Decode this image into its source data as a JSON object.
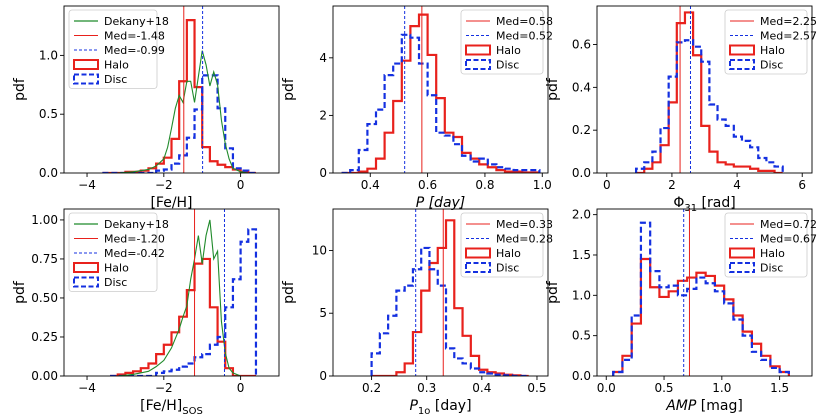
{
  "chart_data": [
    {
      "type": "histogram",
      "xlabel": "[Fe/H]",
      "xlabel_sub": "",
      "ylabel": "pdf",
      "xlim": [
        -4.6,
        1.0
      ],
      "ylim": [
        0,
        1.42
      ],
      "xticks": [
        -4,
        -2,
        0
      ],
      "xtick_labels": [
        "−4",
        "−2",
        "0"
      ],
      "yticks": [
        0,
        0.5,
        1.0
      ],
      "ytick_labels": [
        "0.0",
        "0.5",
        "1.0"
      ],
      "legend_loc": "top-left",
      "legend": [
        {
          "kind": "green",
          "label": "Dekany+18"
        },
        {
          "kind": "red-line",
          "label": "Med=-1.48"
        },
        {
          "kind": "blue-dash",
          "label": "Med=-0.99"
        },
        {
          "kind": "red-box",
          "label": "Halo"
        },
        {
          "kind": "blue-box",
          "label": "Disc"
        }
      ],
      "medians": {
        "halo": -1.48,
        "disc": -0.99
      },
      "bin_edges": [
        -3.6,
        -3.4,
        -3.2,
        -3.0,
        -2.8,
        -2.6,
        -2.4,
        -2.2,
        -2.0,
        -1.8,
        -1.6,
        -1.4,
        -1.2,
        -1.0,
        -0.8,
        -0.6,
        -0.4,
        -0.2,
        0.0,
        0.2,
        0.4
      ],
      "series": [
        {
          "name": "Halo",
          "values": [
            0.0,
            0.0,
            0.0,
            0.01,
            0.01,
            0.02,
            0.04,
            0.08,
            0.13,
            0.29,
            0.78,
            1.3,
            0.73,
            0.22,
            0.1,
            0.07,
            0.05,
            0.03,
            0.01,
            0.0
          ]
        },
        {
          "name": "Disc",
          "values": [
            0.0,
            0.0,
            0.0,
            0.0,
            0.0,
            0.0,
            0.0,
            0.02,
            0.03,
            0.08,
            0.15,
            0.3,
            0.54,
            0.83,
            0.83,
            0.55,
            0.21,
            0.04,
            0.02,
            0.0
          ]
        }
      ],
      "curve_name": "Dekany+18",
      "curve": {
        "x": [
          -3.2,
          -2.8,
          -2.4,
          -2.2,
          -2.0,
          -1.9,
          -1.8,
          -1.7,
          -1.6,
          -1.5,
          -1.4,
          -1.3,
          -1.2,
          -1.1,
          -1.0,
          -0.9,
          -0.8,
          -0.7,
          -0.6,
          -0.5,
          -0.4,
          -0.3,
          -0.2,
          0.0,
          0.2
        ],
        "y": [
          0.0,
          0.01,
          0.03,
          0.06,
          0.12,
          0.22,
          0.38,
          0.55,
          0.66,
          0.6,
          0.78,
          0.78,
          0.6,
          0.82,
          1.04,
          0.92,
          0.74,
          0.86,
          0.75,
          0.45,
          0.25,
          0.12,
          0.04,
          0.01,
          0.0
        ]
      }
    },
    {
      "type": "histogram",
      "xlabel": "P [day]",
      "xlabel_sub": "",
      "ylabel": "pdf",
      "xlim": [
        0.27,
        1.02
      ],
      "ylim": [
        0,
        5.8
      ],
      "xticks": [
        0.4,
        0.6,
        0.8,
        1.0
      ],
      "xtick_labels": [
        "0.4",
        "0.6",
        "0.8",
        "1.0"
      ],
      "yticks": [
        0,
        2,
        4
      ],
      "ytick_labels": [
        "0",
        "2",
        "4"
      ],
      "legend_loc": "top-right",
      "legend": [
        {
          "kind": "red-line",
          "label": "Med=0.58"
        },
        {
          "kind": "blue-dash",
          "label": "Med=0.52"
        },
        {
          "kind": "red-box",
          "label": "Halo"
        },
        {
          "kind": "blue-box",
          "label": "Disc"
        }
      ],
      "medians": {
        "halo": 0.58,
        "disc": 0.52
      },
      "bin_edges": [
        0.3,
        0.33,
        0.36,
        0.39,
        0.42,
        0.45,
        0.48,
        0.51,
        0.54,
        0.57,
        0.6,
        0.63,
        0.66,
        0.69,
        0.72,
        0.75,
        0.78,
        0.81,
        0.84,
        0.87,
        0.9,
        0.93,
        0.96,
        0.99
      ],
      "series": [
        {
          "name": "Halo",
          "values": [
            0.0,
            0.0,
            0.05,
            0.15,
            0.5,
            1.4,
            2.5,
            3.9,
            5.1,
            5.5,
            4.1,
            2.6,
            1.4,
            1.25,
            0.7,
            0.5,
            0.3,
            0.2,
            0.1,
            0.05,
            0.05,
            0.02,
            0.02
          ]
        },
        {
          "name": "Disc",
          "values": [
            0.0,
            0.1,
            0.8,
            1.7,
            2.2,
            3.4,
            3.8,
            4.8,
            4.7,
            3.8,
            2.7,
            1.4,
            1.3,
            1.0,
            0.6,
            0.4,
            0.5,
            0.3,
            0.2,
            0.15,
            0.1,
            0.1,
            0.1
          ]
        }
      ]
    },
    {
      "type": "histogram",
      "xlabel": "Φ",
      "xlabel_sub": "31",
      "xlabel_suffix": " [rad]",
      "ylabel": "pdf",
      "xlim": [
        -0.3,
        6.3
      ],
      "ylim": [
        0,
        0.78
      ],
      "xticks": [
        0,
        2,
        4,
        6
      ],
      "xtick_labels": [
        "0",
        "2",
        "4",
        "6"
      ],
      "yticks": [
        0,
        0.2,
        0.4,
        0.6
      ],
      "ytick_labels": [
        "0.0",
        "0.2",
        "0.4",
        "0.6"
      ],
      "legend_loc": "top-right",
      "legend": [
        {
          "kind": "red-line",
          "label": "Med=2.25"
        },
        {
          "kind": "blue-dash",
          "label": "Med=2.57"
        },
        {
          "kind": "red-box",
          "label": "Halo"
        },
        {
          "kind": "blue-box",
          "label": "Disc"
        }
      ],
      "medians": {
        "halo": 2.25,
        "disc": 2.57
      },
      "bin_edges": [
        0.9,
        1.15,
        1.4,
        1.65,
        1.9,
        2.15,
        2.4,
        2.65,
        2.9,
        3.15,
        3.4,
        3.65,
        3.9,
        4.15,
        4.4,
        4.65,
        4.9,
        5.15,
        5.4
      ],
      "series": [
        {
          "name": "Halo",
          "values": [
            0.0,
            0.02,
            0.05,
            0.13,
            0.33,
            0.7,
            0.75,
            0.55,
            0.22,
            0.1,
            0.05,
            0.04,
            0.03,
            0.03,
            0.02,
            0.01,
            0.01,
            0.0
          ]
        },
        {
          "name": "Disc",
          "values": [
            0.02,
            0.05,
            0.1,
            0.21,
            0.45,
            0.61,
            0.62,
            0.59,
            0.52,
            0.32,
            0.25,
            0.22,
            0.17,
            0.15,
            0.12,
            0.07,
            0.05,
            0.03
          ]
        }
      ]
    },
    {
      "type": "histogram",
      "xlabel": "[Fe/H]",
      "xlabel_sub": "SOS",
      "ylabel": "pdf",
      "xlim": [
        -4.6,
        1.0
      ],
      "ylim": [
        0,
        1.07
      ],
      "xticks": [
        -4,
        -2,
        0
      ],
      "xtick_labels": [
        "−4",
        "−2",
        "0"
      ],
      "yticks": [
        0,
        0.25,
        0.5,
        0.75,
        1.0
      ],
      "ytick_labels": [
        "0.00",
        "0.25",
        "0.50",
        "0.75",
        "1.00"
      ],
      "legend_loc": "top-left",
      "legend": [
        {
          "kind": "green",
          "label": "Dekany+18"
        },
        {
          "kind": "red-line",
          "label": "Med=-1.20"
        },
        {
          "kind": "blue-dash",
          "label": "Med=-0.42"
        },
        {
          "kind": "red-box",
          "label": "Halo"
        },
        {
          "kind": "blue-box",
          "label": "Disc"
        }
      ],
      "medians": {
        "halo": -1.2,
        "disc": -0.42
      },
      "bin_edges": [
        -3.4,
        -3.2,
        -3.0,
        -2.8,
        -2.6,
        -2.4,
        -2.2,
        -2.0,
        -1.8,
        -1.6,
        -1.4,
        -1.2,
        -1.0,
        -0.8,
        -0.6,
        -0.4,
        -0.2,
        0.0,
        0.2,
        0.4
      ],
      "series": [
        {
          "name": "Halo",
          "values": [
            0.0,
            0.01,
            0.02,
            0.03,
            0.05,
            0.08,
            0.14,
            0.2,
            0.28,
            0.38,
            0.55,
            0.72,
            0.75,
            0.44,
            0.22,
            0.05,
            0.0,
            0.0,
            0.0
          ]
        },
        {
          "name": "Disc",
          "values": [
            0.0,
            0.0,
            0.0,
            0.0,
            0.0,
            0.0,
            0.02,
            0.03,
            0.04,
            0.06,
            0.08,
            0.12,
            0.14,
            0.2,
            0.25,
            0.44,
            0.62,
            0.86,
            0.94
          ]
        }
      ],
      "curve_name": "Dekany+18",
      "curve": {
        "x": [
          -3.2,
          -2.8,
          -2.4,
          -2.2,
          -2.0,
          -1.8,
          -1.6,
          -1.5,
          -1.4,
          -1.3,
          -1.2,
          -1.1,
          -1.0,
          -0.9,
          -0.8,
          -0.7,
          -0.6,
          -0.5,
          -0.4,
          -0.3,
          -0.2,
          0.0
        ],
        "y": [
          0.0,
          0.01,
          0.03,
          0.06,
          0.1,
          0.18,
          0.3,
          0.38,
          0.45,
          0.62,
          0.75,
          0.9,
          0.72,
          0.9,
          1.0,
          0.75,
          0.8,
          0.35,
          0.15,
          0.05,
          0.02,
          0.0
        ]
      }
    },
    {
      "type": "histogram",
      "xlabel": "P",
      "xlabel_sub": "1o",
      "xlabel_suffix": " [day]",
      "ylabel": "pdf",
      "xlim": [
        0.13,
        0.52
      ],
      "ylim": [
        0,
        13.3
      ],
      "xticks": [
        0.2,
        0.3,
        0.4,
        0.5
      ],
      "xtick_labels": [
        "0.2",
        "0.3",
        "0.4",
        "0.5"
      ],
      "yticks": [
        0,
        5,
        10
      ],
      "ytick_labels": [
        "0",
        "5",
        "10"
      ],
      "legend_loc": "top-right",
      "legend": [
        {
          "kind": "red-line",
          "label": "Med=0.33"
        },
        {
          "kind": "blue-dash",
          "label": "Med=0.28"
        },
        {
          "kind": "red-box",
          "label": "Halo"
        },
        {
          "kind": "blue-box",
          "label": "Disc"
        }
      ],
      "medians": {
        "halo": 0.33,
        "disc": 0.28
      },
      "bin_edges": [
        0.2,
        0.215,
        0.23,
        0.245,
        0.26,
        0.275,
        0.29,
        0.305,
        0.32,
        0.335,
        0.35,
        0.365,
        0.38,
        0.395,
        0.41,
        0.425,
        0.44,
        0.455,
        0.47,
        0.485
      ],
      "series": [
        {
          "name": "Halo",
          "values": [
            0.0,
            0.0,
            0.0,
            0.3,
            1.0,
            3.5,
            6.8,
            9.0,
            10.2,
            12.4,
            5.4,
            3.2,
            1.6,
            0.5,
            0.3,
            0.2,
            0.1,
            0.05,
            0.0
          ]
        },
        {
          "name": "Disc",
          "values": [
            1.8,
            3.4,
            4.8,
            6.8,
            7.2,
            8.5,
            10.2,
            8.5,
            7.2,
            2.2,
            1.4,
            1.0,
            0.6,
            0.3,
            0.2,
            0.1,
            0.05,
            0.0,
            0.0
          ]
        }
      ]
    },
    {
      "type": "histogram",
      "xlabel": "AMP",
      "xlabel_sub": "",
      "xlabel_suffix": " [mag]",
      "ylabel": "pdf",
      "xlim": [
        -0.08,
        1.78
      ],
      "ylim": [
        0,
        2.07
      ],
      "xticks": [
        0.0,
        0.5,
        1.0,
        1.5
      ],
      "xtick_labels": [
        "0.0",
        "0.5",
        "1.0",
        "1.5"
      ],
      "yticks": [
        0,
        0.5,
        1.0,
        1.5,
        2.0
      ],
      "ytick_labels": [
        "0.0",
        "0.5",
        "1.0",
        "1.5",
        "2.0"
      ],
      "legend_loc": "top-right",
      "legend": [
        {
          "kind": "red-line",
          "label": "Med=0.72"
        },
        {
          "kind": "blue-dash",
          "label": "Med=0.67"
        },
        {
          "kind": "red-box",
          "label": "Halo"
        },
        {
          "kind": "blue-box",
          "label": "Disc"
        }
      ],
      "medians": {
        "halo": 0.72,
        "disc": 0.67
      },
      "bin_edges": [
        0.06,
        0.14,
        0.22,
        0.3,
        0.38,
        0.46,
        0.54,
        0.62,
        0.7,
        0.78,
        0.86,
        0.94,
        1.02,
        1.1,
        1.18,
        1.26,
        1.34,
        1.42,
        1.5,
        1.58
      ],
      "series": [
        {
          "name": "Halo",
          "values": [
            0.05,
            0.25,
            0.65,
            1.45,
            1.1,
            0.98,
            1.05,
            1.18,
            1.22,
            1.28,
            1.24,
            1.12,
            0.95,
            0.75,
            0.55,
            0.4,
            0.25,
            0.12,
            0.05
          ]
        },
        {
          "name": "Disc",
          "values": [
            0.05,
            0.2,
            0.75,
            1.9,
            1.3,
            1.1,
            1.12,
            1.0,
            1.08,
            1.22,
            1.15,
            1.05,
            0.9,
            0.7,
            0.5,
            0.3,
            0.2,
            0.1,
            0.05
          ]
        }
      ]
    }
  ]
}
